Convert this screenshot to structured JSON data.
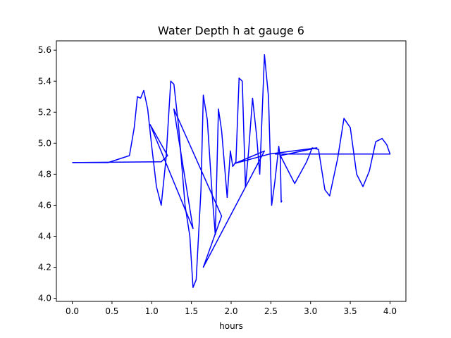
{
  "chart_data": {
    "type": "line",
    "title": "Water Depth h at gauge 6",
    "xlabel": "hours",
    "ylabel": "",
    "xlim": [
      -0.2,
      4.2
    ],
    "ylim": [
      3.98,
      5.66
    ],
    "xticks": [
      "0.0",
      "0.5",
      "1.0",
      "1.5",
      "2.0",
      "2.5",
      "3.0",
      "3.5",
      "4.0"
    ],
    "yticks": [
      "4.0",
      "4.2",
      "4.4",
      "4.6",
      "4.8",
      "5.0",
      "5.2",
      "5.4",
      "5.6"
    ],
    "grid": false,
    "series": [
      {
        "color": "#0000ff",
        "points": [
          [
            0.0,
            4.875
          ],
          [
            0.45,
            4.875
          ],
          [
            0.72,
            4.92
          ],
          [
            0.78,
            5.1
          ],
          [
            0.82,
            5.3
          ],
          [
            0.86,
            5.29
          ],
          [
            0.9,
            5.34
          ],
          [
            0.95,
            5.22
          ],
          [
            1.0,
            4.98
          ],
          [
            1.06,
            4.72
          ],
          [
            1.12,
            4.6
          ],
          [
            1.18,
            4.9
          ],
          [
            1.24,
            5.4
          ],
          [
            1.28,
            5.38
          ],
          [
            1.34,
            5.1
          ],
          [
            1.42,
            4.6
          ],
          [
            1.48,
            4.4
          ],
          [
            1.52,
            4.07
          ],
          [
            1.56,
            4.12
          ],
          [
            1.62,
            4.7
          ],
          [
            1.65,
            5.31
          ],
          [
            1.7,
            5.15
          ],
          [
            1.76,
            4.68
          ],
          [
            1.8,
            4.41
          ],
          [
            1.84,
            5.22
          ],
          [
            1.88,
            5.08
          ],
          [
            1.95,
            4.65
          ],
          [
            1.99,
            4.95
          ],
          [
            2.02,
            4.85
          ],
          [
            2.06,
            4.88
          ],
          [
            2.1,
            5.42
          ],
          [
            2.14,
            5.4
          ],
          [
            2.18,
            4.72
          ],
          [
            2.22,
            4.95
          ],
          [
            2.27,
            5.29
          ],
          [
            2.32,
            5.05
          ],
          [
            2.36,
            4.8
          ],
          [
            2.42,
            5.57
          ],
          [
            2.47,
            5.3
          ],
          [
            2.51,
            4.6
          ],
          [
            2.55,
            4.75
          ],
          [
            2.6,
            4.98
          ],
          [
            2.62,
            4.9
          ],
          [
            2.63,
            4.62
          ],
          [
            2.64,
            4.63
          ]
        ]
      },
      {
        "color": "#0000ff",
        "points": [
          [
            0.0,
            4.875
          ],
          [
            1.12,
            4.88
          ],
          [
            1.2,
            4.92
          ],
          [
            0.98,
            5.12
          ],
          [
            1.52,
            4.45
          ],
          [
            1.28,
            5.22
          ],
          [
            1.88,
            4.53
          ],
          [
            1.65,
            4.2
          ],
          [
            2.42,
            4.95
          ],
          [
            2.05,
            4.87
          ],
          [
            2.48,
            4.93
          ],
          [
            3.08,
            4.97
          ],
          [
            2.62,
            4.92
          ],
          [
            2.8,
            4.74
          ],
          [
            2.95,
            4.88
          ],
          [
            3.02,
            4.97
          ],
          [
            3.1,
            4.96
          ],
          [
            3.18,
            4.7
          ],
          [
            3.24,
            4.66
          ],
          [
            3.34,
            4.9
          ],
          [
            3.42,
            5.16
          ],
          [
            3.5,
            5.1
          ],
          [
            3.58,
            4.8
          ],
          [
            3.66,
            4.72
          ],
          [
            3.74,
            4.82
          ],
          [
            3.82,
            5.01
          ],
          [
            3.9,
            5.03
          ],
          [
            3.96,
            4.99
          ],
          [
            4.0,
            4.93
          ],
          [
            2.55,
            4.93
          ]
        ]
      }
    ]
  }
}
